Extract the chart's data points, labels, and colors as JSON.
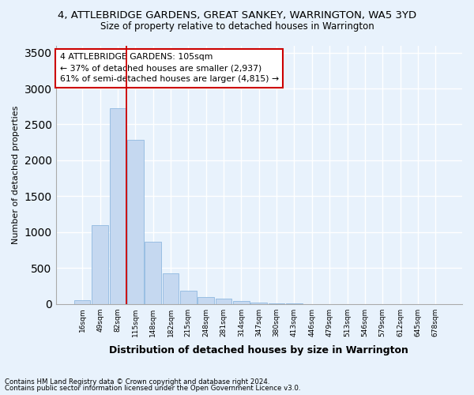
{
  "title1": "4, ATTLEBRIDGE GARDENS, GREAT SANKEY, WARRINGTON, WA5 3YD",
  "title2": "Size of property relative to detached houses in Warrington",
  "xlabel": "Distribution of detached houses by size in Warrington",
  "ylabel": "Number of detached properties",
  "footnote1": "Contains HM Land Registry data © Crown copyright and database right 2024.",
  "footnote2": "Contains public sector information licensed under the Open Government Licence v3.0.",
  "categories": [
    "16sqm",
    "49sqm",
    "82sqm",
    "115sqm",
    "148sqm",
    "182sqm",
    "215sqm",
    "248sqm",
    "281sqm",
    "314sqm",
    "347sqm",
    "380sqm",
    "413sqm",
    "446sqm",
    "479sqm",
    "513sqm",
    "546sqm",
    "579sqm",
    "612sqm",
    "645sqm",
    "678sqm"
  ],
  "values": [
    50,
    1100,
    2730,
    2280,
    870,
    420,
    185,
    100,
    70,
    40,
    15,
    5,
    2,
    1,
    0,
    0,
    0,
    0,
    0,
    0,
    0
  ],
  "bar_color": "#c5d8f0",
  "bar_edge_color": "#8fb8e0",
  "bg_color": "#e8f2fc",
  "grid_color": "#ffffff",
  "vline_color": "#cc0000",
  "annotation_text": "4 ATTLEBRIDGE GARDENS: 105sqm\n← 37% of detached houses are smaller (2,937)\n61% of semi-detached houses are larger (4,815) →",
  "annotation_box_color": "white",
  "annotation_box_edge_color": "#cc0000",
  "ylim": [
    0,
    3600
  ],
  "yticks": [
    0,
    500,
    1000,
    1500,
    2000,
    2500,
    3000,
    3500
  ]
}
